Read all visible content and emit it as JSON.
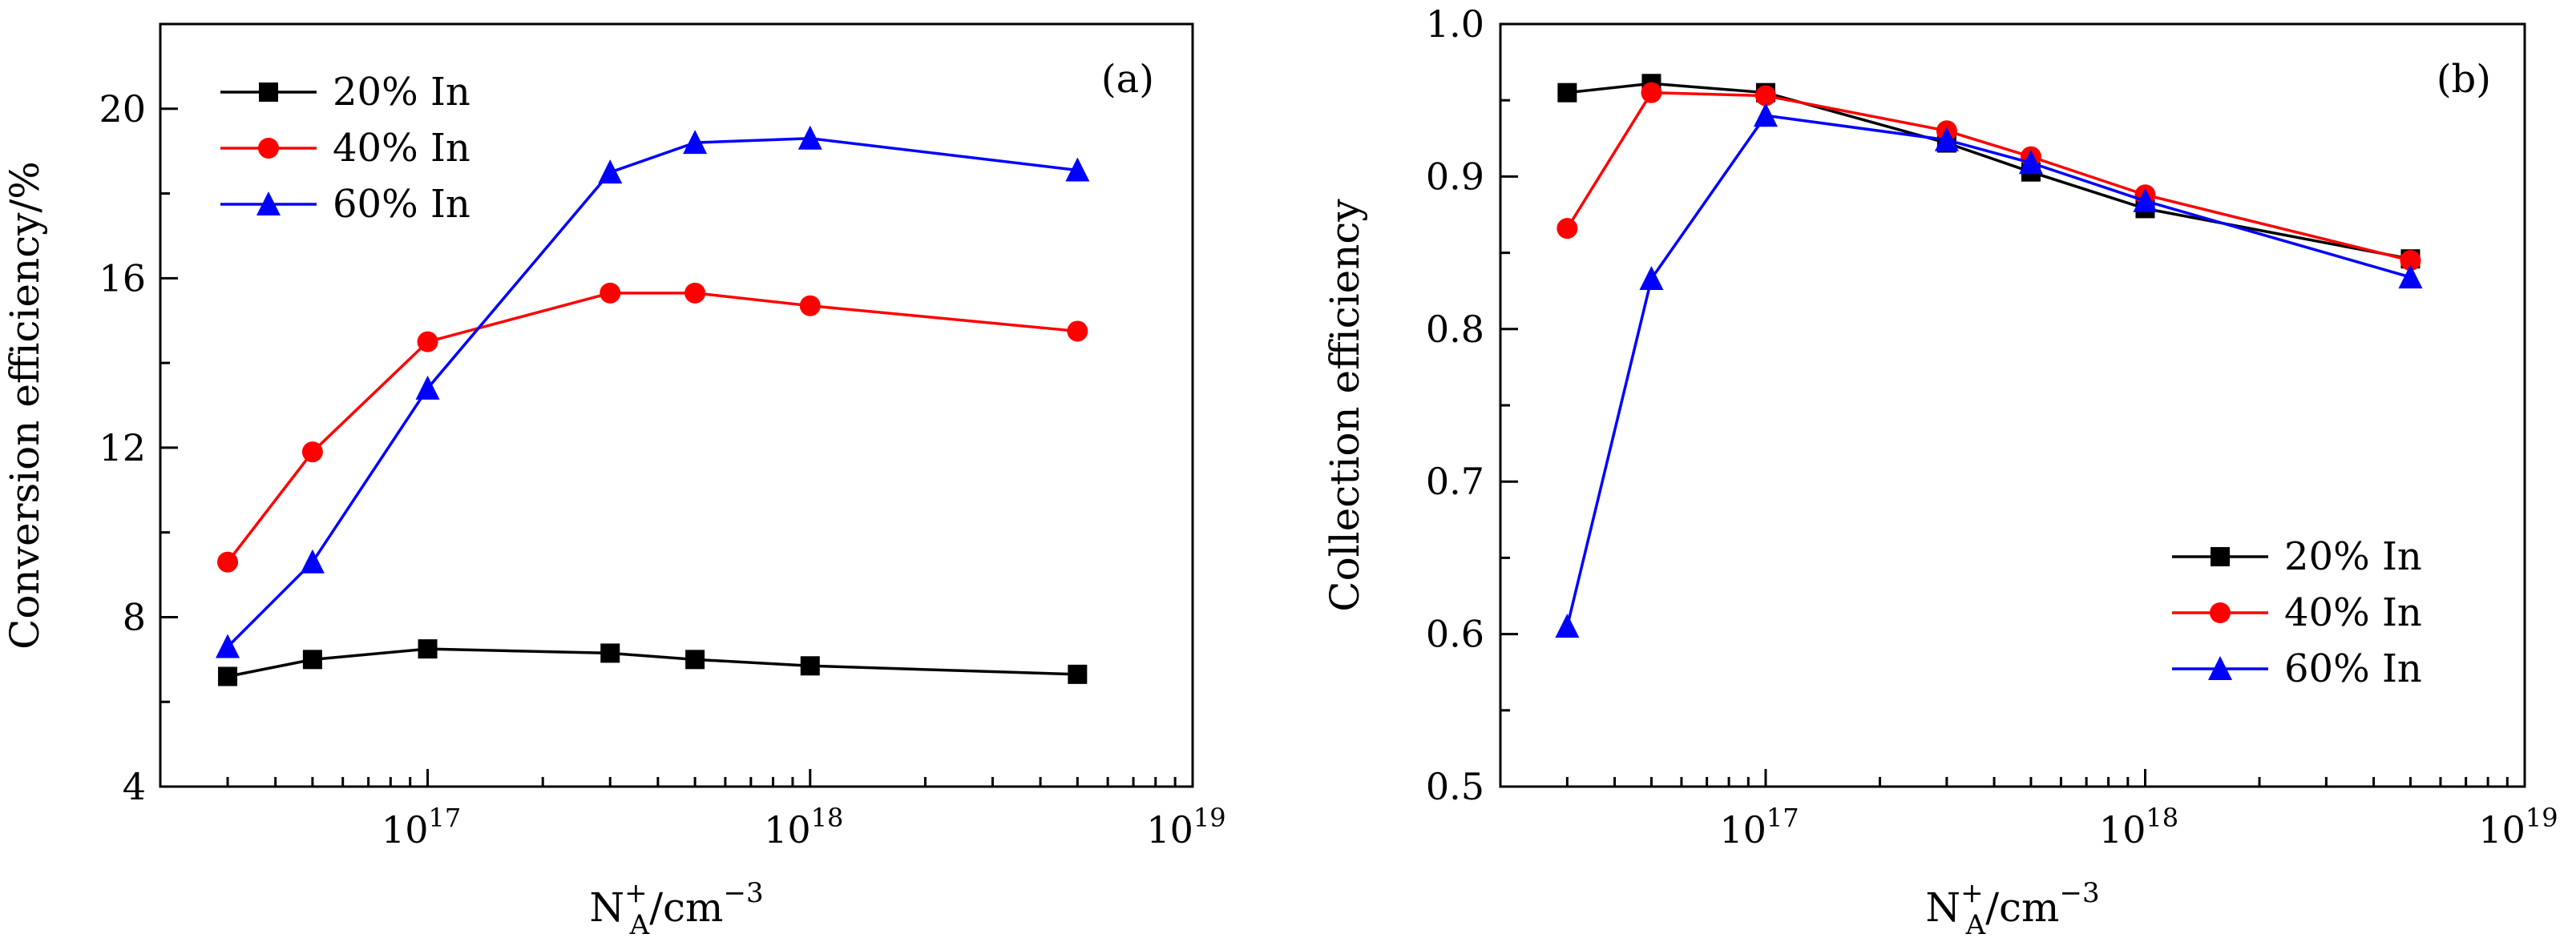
{
  "chart_data": [
    {
      "type": "line",
      "panel_label": "(a)",
      "xlabel": "N_A^+/cm^-3",
      "xlabel_main": "N",
      "xlabel_sub": "A",
      "xlabel_sup": "+",
      "xlabel_unit": "/cm",
      "xlabel_unit_sup": "−3",
      "ylabel": "Conversion efficiency/%",
      "x_scale": "log",
      "xlim": [
        2e+16,
        1e+19
      ],
      "ylim": [
        4,
        22
      ],
      "y_ticks": [
        4,
        8,
        12,
        16,
        20
      ],
      "y_tick_labels": [
        "4",
        "8",
        "12",
        "16",
        "20"
      ],
      "x_ticks": [
        {
          "value": 1e+17,
          "base": "10",
          "exp": "17"
        },
        {
          "value": 1e+18,
          "base": "10",
          "exp": "18"
        },
        {
          "value": 1e+19,
          "base": "10",
          "exp": "19"
        }
      ],
      "grid": false,
      "legend_position": "top-left",
      "x": [
        3e+16,
        5e+16,
        1e+17,
        3e+17,
        5e+17,
        1e+18,
        5e+18
      ],
      "series": [
        {
          "name": "20% In",
          "color": "#000000",
          "marker": "square",
          "values": [
            6.6,
            7.0,
            7.25,
            7.15,
            7.0,
            6.85,
            6.65
          ]
        },
        {
          "name": "40% In",
          "color": "#ff0000",
          "marker": "circle",
          "values": [
            9.3,
            11.9,
            14.5,
            15.65,
            15.65,
            15.35,
            14.75
          ]
        },
        {
          "name": "60% In",
          "color": "#0000ff",
          "marker": "triangle",
          "values": [
            7.3,
            9.3,
            13.4,
            18.5,
            19.2,
            19.3,
            18.55
          ]
        }
      ]
    },
    {
      "type": "line",
      "panel_label": "(b)",
      "xlabel": "N_A^+/cm^-3",
      "xlabel_main": "N",
      "xlabel_sub": "A",
      "xlabel_sup": "+",
      "xlabel_unit": "/cm",
      "xlabel_unit_sup": "−3",
      "ylabel": "Collection efficiency",
      "x_scale": "log",
      "xlim": [
        2e+16,
        1e+19
      ],
      "ylim": [
        0.5,
        1.0
      ],
      "y_ticks": [
        0.5,
        0.6,
        0.7,
        0.8,
        0.9,
        1.0
      ],
      "y_tick_labels": [
        "0.5",
        "0.6",
        "0.7",
        "0.8",
        "0.9",
        "1.0"
      ],
      "x_ticks": [
        {
          "value": 1e+17,
          "base": "10",
          "exp": "17"
        },
        {
          "value": 1e+18,
          "base": "10",
          "exp": "18"
        },
        {
          "value": 1e+19,
          "base": "10",
          "exp": "19"
        }
      ],
      "grid": false,
      "legend_position": "bottom-right",
      "x": [
        3e+16,
        5e+16,
        1e+17,
        3e+17,
        5e+17,
        1e+18,
        5e+18
      ],
      "series": [
        {
          "name": "20% In",
          "color": "#000000",
          "marker": "square",
          "values": [
            0.955,
            0.961,
            0.955,
            0.922,
            0.903,
            0.879,
            0.846
          ]
        },
        {
          "name": "40% In",
          "color": "#ff0000",
          "marker": "circle",
          "values": [
            0.866,
            0.955,
            0.953,
            0.93,
            0.913,
            0.888,
            0.845
          ]
        },
        {
          "name": "60% In",
          "color": "#0000ff",
          "marker": "triangle",
          "values": [
            0.605,
            0.833,
            0.94,
            0.924,
            0.909,
            0.884,
            0.834
          ]
        }
      ]
    }
  ]
}
